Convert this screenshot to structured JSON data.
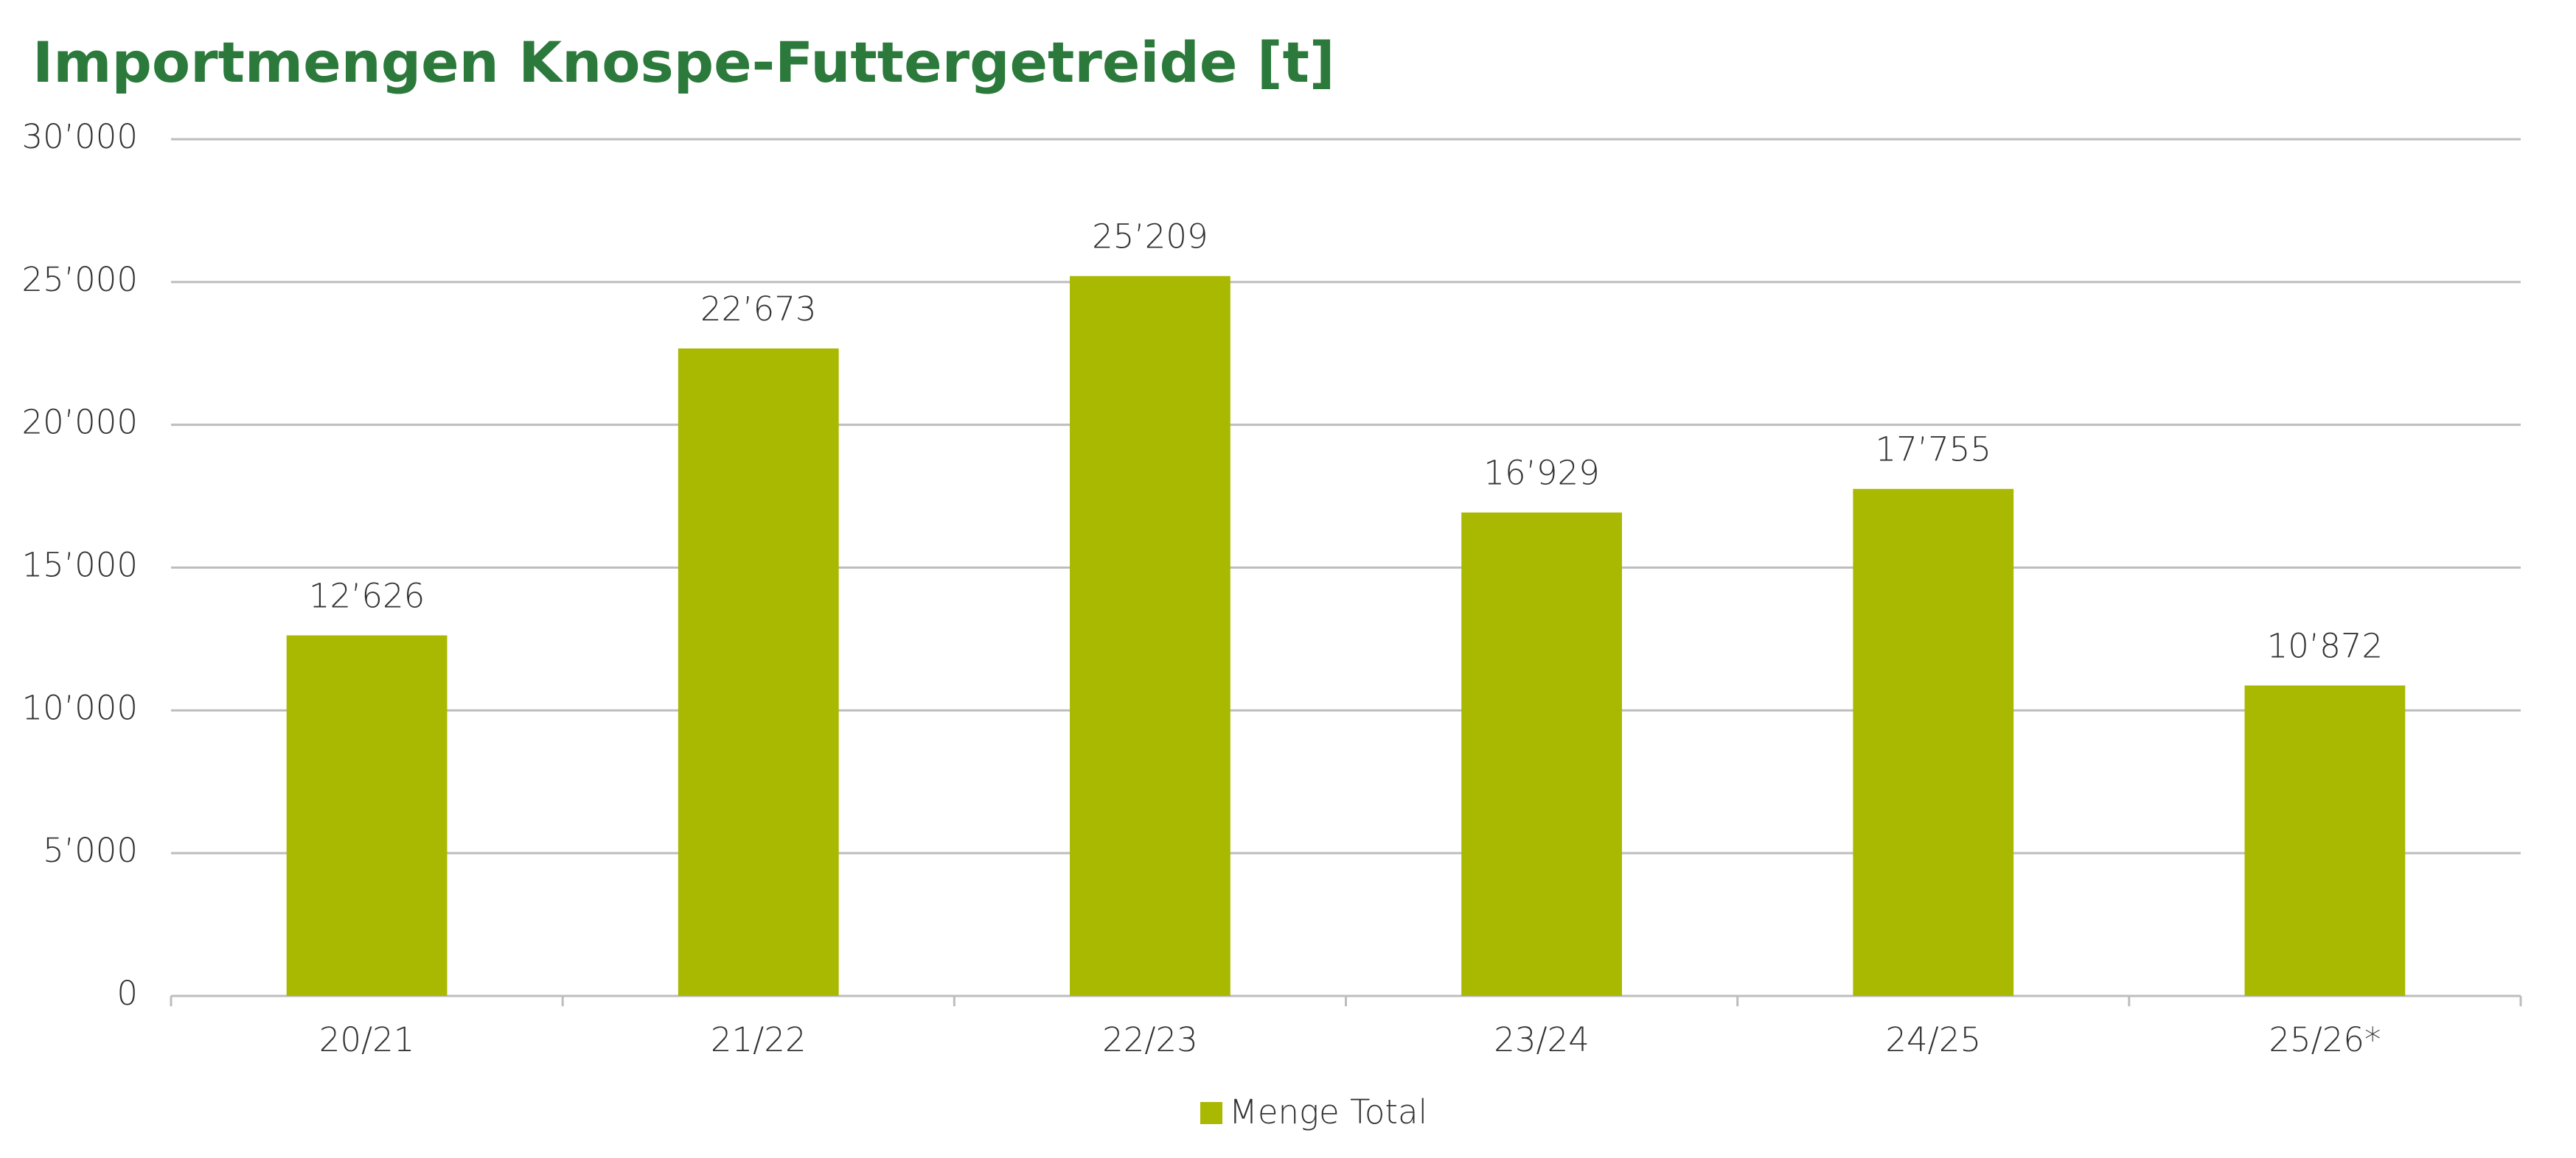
{
  "chart_data": {
    "type": "bar",
    "title": "Importmengen Knospe-Futtergetreide [t]",
    "categories": [
      "20/21",
      "21/22",
      "22/23",
      "23/24",
      "24/25",
      "25/26*"
    ],
    "series": [
      {
        "name": "Menge Total",
        "color": "#a9b800",
        "values": [
          12626,
          22673,
          25209,
          16929,
          17755,
          10872
        ],
        "value_labels": [
          "12’626",
          "22’673",
          "25’209",
          "16’929",
          "17’755",
          "10’872"
        ]
      }
    ],
    "ylim": [
      0,
      30000
    ],
    "yticks": [
      0,
      {
        "value": 5000,
        "label": "5’000"
      },
      {
        "value": 10000,
        "label": "10’000"
      },
      {
        "value": 15000,
        "label": "15’000"
      },
      {
        "value": 20000,
        "label": "20’000"
      },
      {
        "value": 25000,
        "label": "25’000"
      },
      {
        "value": 30000,
        "label": "30’000"
      }
    ],
    "grid": true,
    "legend": "bottom"
  }
}
